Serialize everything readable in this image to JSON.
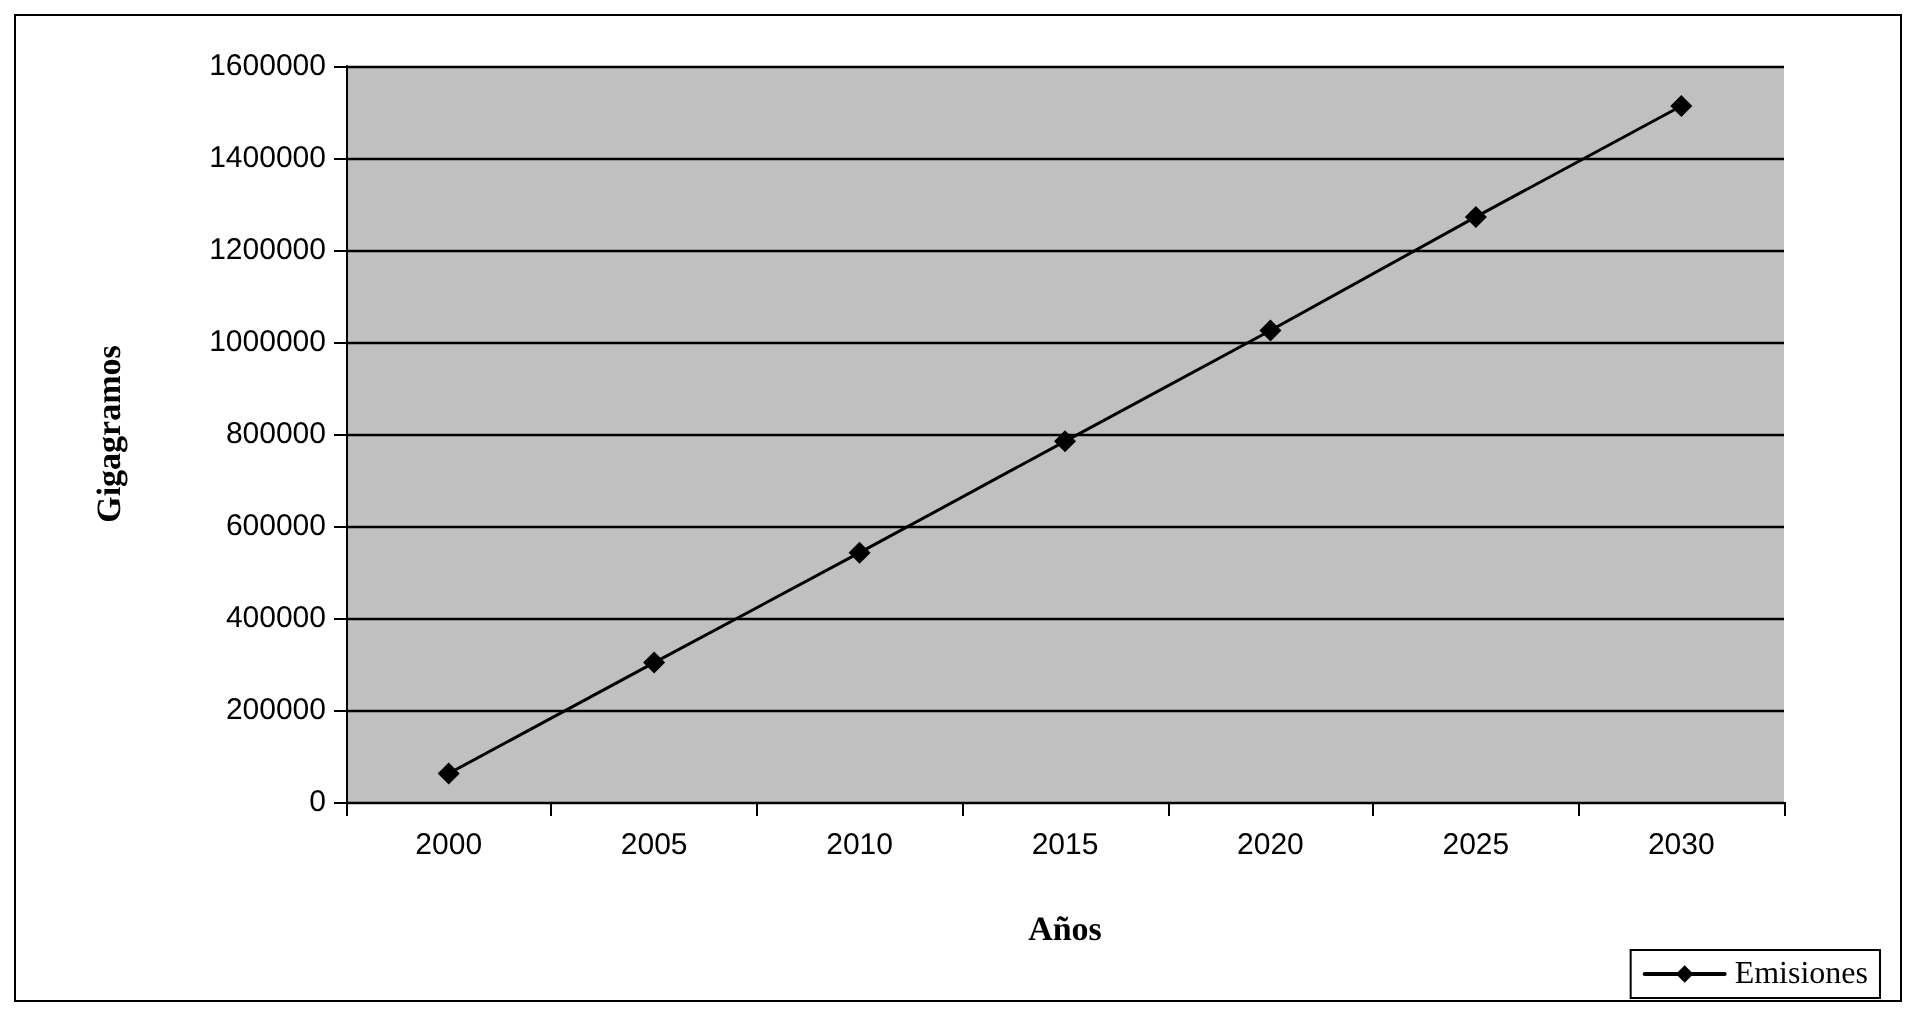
{
  "chart_data": {
    "type": "line",
    "xlabel": "Años",
    "ylabel": "Gigagramos",
    "categories": [
      "2000",
      "2005",
      "2010",
      "2015",
      "2020",
      "2025",
      "2030"
    ],
    "series": [
      {
        "name": "Emisiones",
        "color": "#000000",
        "values": [
          62000,
          303000,
          542000,
          784000,
          1025000,
          1272000,
          1513000
        ]
      }
    ],
    "ylim": [
      0,
      1600000
    ],
    "yticks": [
      0,
      200000,
      400000,
      600000,
      800000,
      1000000,
      1200000,
      1400000,
      1600000
    ],
    "grid": "y",
    "legend": "bottom right",
    "marker": "diamond",
    "line_style": "solid"
  }
}
